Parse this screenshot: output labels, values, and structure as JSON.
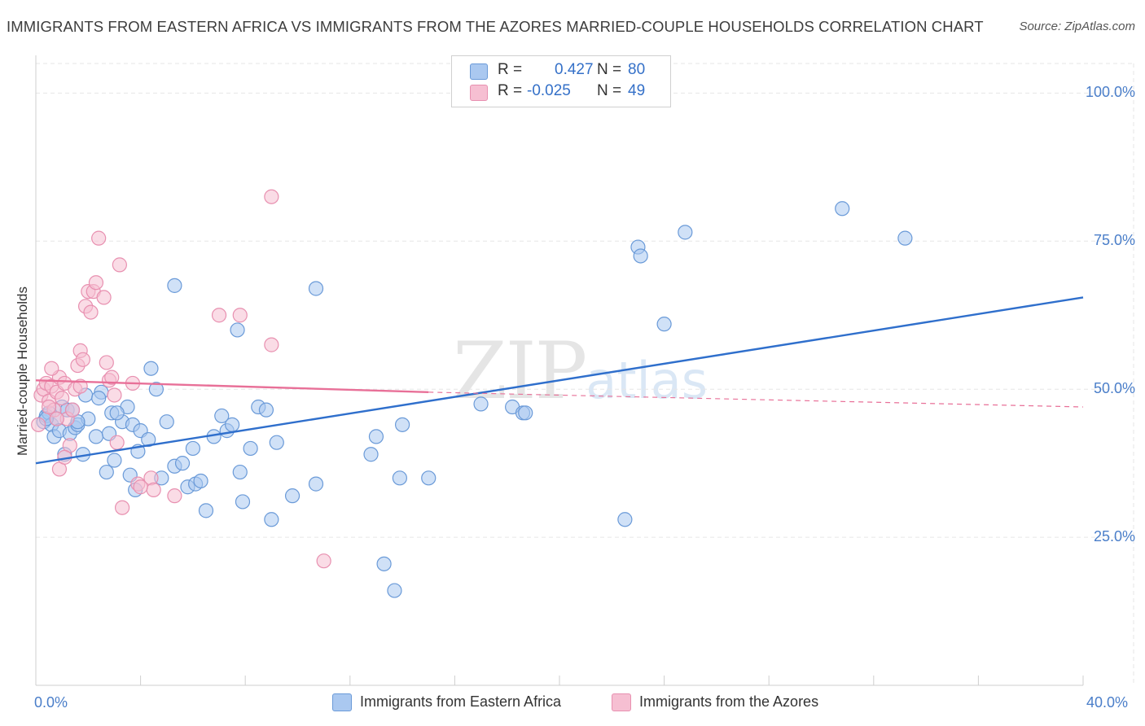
{
  "header": {
    "title": "IMMIGRANTS FROM EASTERN AFRICA VS IMMIGRANTS FROM THE AZORES MARRIED-COUPLE HOUSEHOLDS CORRELATION CHART",
    "source": "Source: ZipAtlas.com"
  },
  "watermark": {
    "zip": "ZIP",
    "atlas": "atlas"
  },
  "legend": {
    "r_label": "R =",
    "n_label": "N =",
    "series1": {
      "r": "0.427",
      "n": "80"
    },
    "series2": {
      "r": "-0.025",
      "n": "49"
    }
  },
  "colors": {
    "blue_fill": "#aac8f0",
    "blue_stroke": "#6a9ad8",
    "blue_line": "#2f6fcc",
    "pink_fill": "#f6bfd2",
    "pink_stroke": "#e890b0",
    "pink_line": "#e87098",
    "tick_text": "#4a7ec9",
    "grid": "#e6e6e6"
  },
  "chart_data": {
    "type": "scatter",
    "title": "IMMIGRANTS FROM EASTERN AFRICA VS IMMIGRANTS FROM THE AZORES MARRIED-COUPLE HOUSEHOLDS CORRELATION CHART",
    "xlabel": "",
    "ylabel": "Married-couple Households",
    "xlim": [
      0,
      40
    ],
    "ylim": [
      0,
      105
    ],
    "x_tick_labels": [
      "0.0%",
      "40.0%"
    ],
    "y_ticks": [
      25,
      50,
      75,
      100
    ],
    "y_tick_labels": [
      "25.0%",
      "50.0%",
      "75.0%",
      "100.0%"
    ],
    "series": [
      {
        "name": "Immigrants from Eastern Africa",
        "color": "blue",
        "r": 0.427,
        "n": 80,
        "trend": {
          "x0": 0,
          "y0": 37.5,
          "x1": 40,
          "y1": 65.5,
          "dashed_to": null
        },
        "points": [
          [
            0.3,
            44.5
          ],
          [
            0.4,
            45.5
          ],
          [
            0.5,
            46
          ],
          [
            0.6,
            44
          ],
          [
            0.7,
            42
          ],
          [
            0.8,
            45
          ],
          [
            0.9,
            43
          ],
          [
            1.0,
            47
          ],
          [
            1.1,
            39
          ],
          [
            1.2,
            46.5
          ],
          [
            1.3,
            42.5
          ],
          [
            1.5,
            43.5
          ],
          [
            1.6,
            44
          ],
          [
            1.8,
            39
          ],
          [
            1.9,
            49
          ],
          [
            2.0,
            45
          ],
          [
            2.3,
            42
          ],
          [
            2.5,
            49.5
          ],
          [
            2.8,
            42.5
          ],
          [
            2.9,
            46
          ],
          [
            3.0,
            38
          ],
          [
            3.3,
            44.5
          ],
          [
            3.5,
            47
          ],
          [
            3.6,
            35.5
          ],
          [
            3.7,
            44
          ],
          [
            3.8,
            33
          ],
          [
            3.9,
            39.5
          ],
          [
            4.0,
            43
          ],
          [
            4.3,
            41.5
          ],
          [
            4.6,
            50
          ],
          [
            4.8,
            35
          ],
          [
            5.0,
            44.5
          ],
          [
            5.3,
            37
          ],
          [
            5.6,
            37.5
          ],
          [
            5.8,
            33.5
          ],
          [
            6.0,
            40
          ],
          [
            6.1,
            34
          ],
          [
            6.3,
            34.5
          ],
          [
            6.5,
            29.5
          ],
          [
            6.8,
            42
          ],
          [
            7.1,
            45.5
          ],
          [
            7.3,
            43
          ],
          [
            7.5,
            44
          ],
          [
            7.8,
            36
          ],
          [
            7.9,
            31
          ],
          [
            8.2,
            40
          ],
          [
            8.5,
            47
          ],
          [
            8.8,
            46.5
          ],
          [
            9.0,
            28
          ],
          [
            9.2,
            41
          ],
          [
            9.8,
            32
          ],
          [
            10.7,
            34
          ],
          [
            12.8,
            39
          ],
          [
            13.0,
            42
          ],
          [
            13.3,
            20.5
          ],
          [
            13.9,
            35
          ],
          [
            13.7,
            16
          ],
          [
            14.0,
            44
          ],
          [
            15.0,
            35
          ],
          [
            17.0,
            47.5
          ],
          [
            18.2,
            47
          ],
          [
            18.6,
            46
          ],
          [
            18.7,
            46
          ],
          [
            22.5,
            28
          ],
          [
            23.0,
            74
          ],
          [
            23.1,
            72.5
          ],
          [
            24.0,
            61
          ],
          [
            24.8,
            76.5
          ],
          [
            30.8,
            80.5
          ],
          [
            33.2,
            75.5
          ],
          [
            5.3,
            67.5
          ],
          [
            10.7,
            67
          ],
          [
            7.7,
            60
          ],
          [
            4.4,
            53.5
          ],
          [
            0.4,
            45
          ],
          [
            1.6,
            44.5
          ],
          [
            2.4,
            48.5
          ],
          [
            2.7,
            36
          ],
          [
            1.4,
            46.5
          ],
          [
            3.1,
            46
          ]
        ]
      },
      {
        "name": "Immigrants from the Azores",
        "color": "pink",
        "r": -0.025,
        "n": 49,
        "trend": {
          "x0": 0,
          "y0": 51.5,
          "x1": 15,
          "y1": 49.5,
          "dashed_to": {
            "x": 40,
            "y": 47
          }
        },
        "points": [
          [
            0.1,
            44
          ],
          [
            0.2,
            49
          ],
          [
            0.3,
            50
          ],
          [
            0.4,
            51
          ],
          [
            0.5,
            48
          ],
          [
            0.6,
            50.5
          ],
          [
            0.7,
            46.5
          ],
          [
            0.8,
            49.5
          ],
          [
            0.9,
            52
          ],
          [
            1.0,
            48.5
          ],
          [
            1.1,
            51
          ],
          [
            1.2,
            45
          ],
          [
            1.3,
            40.5
          ],
          [
            1.4,
            46.5
          ],
          [
            1.5,
            50
          ],
          [
            1.6,
            54
          ],
          [
            1.7,
            56.5
          ],
          [
            1.8,
            55
          ],
          [
            1.9,
            64
          ],
          [
            2.0,
            66.5
          ],
          [
            2.1,
            63
          ],
          [
            2.2,
            66.5
          ],
          [
            2.3,
            68
          ],
          [
            2.4,
            75.5
          ],
          [
            2.6,
            65.5
          ],
          [
            2.7,
            54.5
          ],
          [
            2.8,
            51.5
          ],
          [
            2.9,
            52
          ],
          [
            3.0,
            49
          ],
          [
            3.1,
            41
          ],
          [
            3.2,
            71
          ],
          [
            3.3,
            30
          ],
          [
            3.7,
            51
          ],
          [
            3.9,
            34
          ],
          [
            4.4,
            35
          ],
          [
            4.5,
            33
          ],
          [
            5.3,
            32
          ],
          [
            7.0,
            62.5
          ],
          [
            7.8,
            62.5
          ],
          [
            9.0,
            57.5
          ],
          [
            9.0,
            82.5
          ],
          [
            11.0,
            21
          ],
          [
            4.0,
            33.5
          ],
          [
            0.6,
            53.5
          ],
          [
            0.9,
            36.5
          ],
          [
            1.1,
            38.5
          ],
          [
            0.5,
            47
          ],
          [
            0.8,
            45
          ],
          [
            1.7,
            50.5
          ]
        ]
      }
    ]
  },
  "bottom_legend": {
    "series1_label": "Immigrants from Eastern Africa",
    "series2_label": "Immigrants from the Azores"
  }
}
